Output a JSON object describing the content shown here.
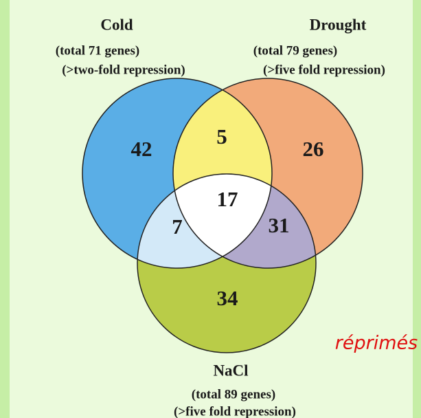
{
  "sets": [
    {
      "name": "Cold",
      "total": "(total 71 genes)",
      "criterion": "(>two-fold repression)"
    },
    {
      "name": "Drought",
      "total": "(total 79 genes)",
      "criterion": "(>five fold repression)"
    },
    {
      "name": "NaCl",
      "total": "(total 89 genes)",
      "criterion": "(>five fold repression)"
    }
  ],
  "regions": {
    "cold_only": 42,
    "cold_drought": 5,
    "drought_only": 26,
    "all_three": 17,
    "cold_nacl": 7,
    "drought_nacl": 31,
    "nacl_only": 34
  },
  "annotation": "réprimés"
}
